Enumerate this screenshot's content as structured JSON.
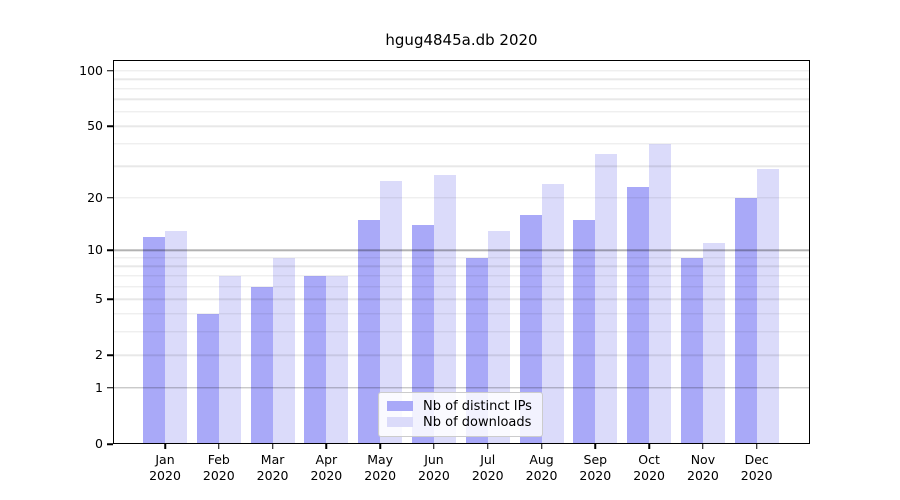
{
  "title": "hgug4845a.db 2020",
  "colors": {
    "ips_bar": "#a9a9f8",
    "downloads_bar": "#dbdbfa",
    "grid_major": "rgba(0,0,0,0.30)",
    "grid_minor": "rgba(0,0,0,0.09)",
    "axis": "#000000",
    "legend_border": "#cccccc"
  },
  "legend": {
    "items": [
      {
        "label": "Nb of distinct IPs",
        "series": "ips"
      },
      {
        "label": "Nb of downloads",
        "series": "downloads"
      }
    ]
  },
  "y_axis": {
    "tick_labels": [
      "0",
      "1",
      "2",
      "5",
      "10",
      "20",
      "50",
      "100"
    ],
    "tick_values": [
      0,
      1,
      2,
      5,
      10,
      20,
      50,
      100
    ],
    "major_grid_values": [
      1,
      10
    ],
    "minor_grid_values": [
      2,
      3,
      4,
      5,
      6,
      7,
      8,
      9,
      20,
      30,
      40,
      50,
      60,
      70,
      80,
      90,
      100
    ]
  },
  "x_axis": {
    "labels": [
      "Jan 2020",
      "Feb 2020",
      "Mar 2020",
      "Apr 2020",
      "May 2020",
      "Jun 2020",
      "Jul 2020",
      "Aug 2020",
      "Sep 2020",
      "Oct 2020",
      "Nov 2020",
      "Dec 2020"
    ]
  },
  "chart_data": {
    "type": "bar",
    "title": "hgug4845a.db 2020",
    "categories": [
      "Jan 2020",
      "Feb 2020",
      "Mar 2020",
      "Apr 2020",
      "May 2020",
      "Jun 2020",
      "Jul 2020",
      "Aug 2020",
      "Sep 2020",
      "Oct 2020",
      "Nov 2020",
      "Dec 2020"
    ],
    "series": [
      {
        "name": "Nb of distinct IPs",
        "color": "#a9a9f8",
        "values": [
          12,
          4,
          6,
          7,
          15,
          14,
          9,
          16,
          15,
          23,
          9,
          20
        ]
      },
      {
        "name": "Nb of downloads",
        "color": "#dbdbfa",
        "values": [
          13,
          7,
          9,
          7,
          25,
          27,
          13,
          24,
          35,
          40,
          11,
          29
        ]
      }
    ],
    "yscale": "log10(1+y)",
    "ylim": [
      0,
      119
    ],
    "yticks": [
      0,
      1,
      2,
      5,
      10,
      20,
      50,
      100
    ],
    "grid": true,
    "legend_position": "lower center"
  }
}
